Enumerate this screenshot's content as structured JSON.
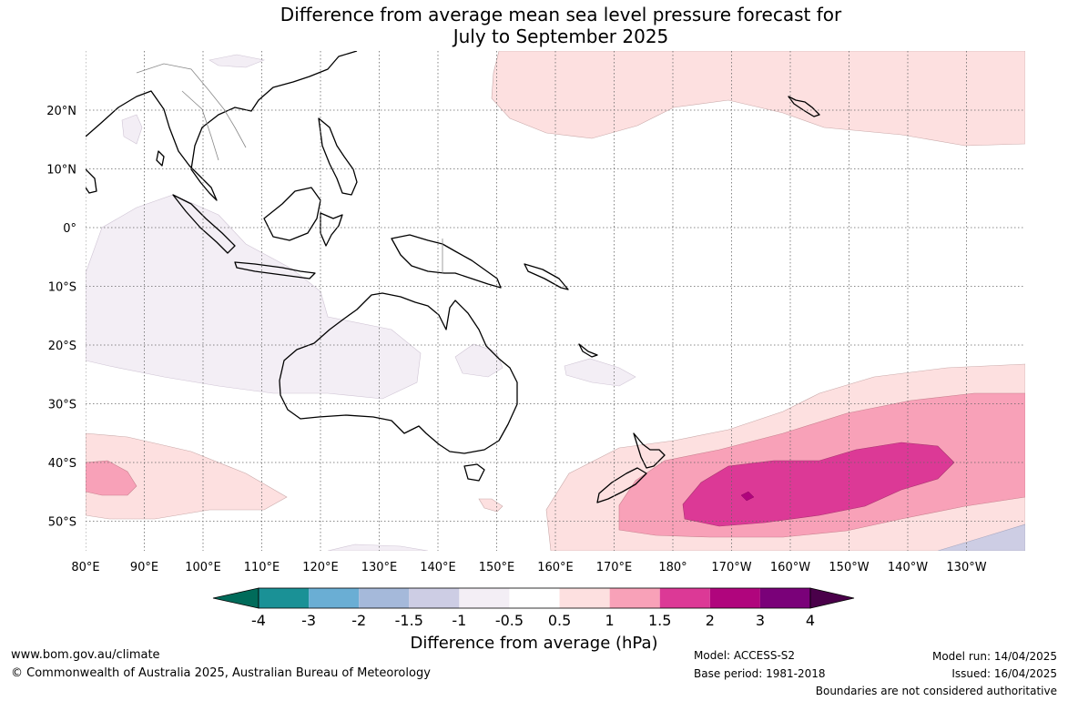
{
  "title_line1": "Difference from average mean sea level pressure forecast for",
  "title_line2": "July to September 2025",
  "map": {
    "lon_labels": [
      "80°E",
      "90°E",
      "100°E",
      "110°E",
      "120°E",
      "130°E",
      "140°E",
      "150°E",
      "160°E",
      "170°E",
      "180°",
      "170°W",
      "160°W",
      "150°W",
      "140°W",
      "130°W"
    ],
    "lat_labels": [
      "20°N",
      "10°N",
      "0°",
      "10°S",
      "20°S",
      "30°S",
      "40°S",
      "50°S"
    ],
    "extent": {
      "lon": [
        80,
        240
      ],
      "lat": [
        -55,
        30
      ]
    }
  },
  "colorbar": {
    "title": "Difference from average (hPa)",
    "labels": [
      "-4",
      "-3",
      "-2",
      "-1.5",
      "-1",
      "-0.5",
      "0.5",
      "1",
      "1.5",
      "2",
      "3",
      "4"
    ],
    "colors": [
      "#006b5a",
      "#1a9196",
      "#6aaed4",
      "#a5b9da",
      "#cdcde4",
      "#f3eef5",
      "#ffffff",
      "#fde0e0",
      "#f8a1b8",
      "#dc3996",
      "#b0057d",
      "#7a0179",
      "#4a004a"
    ]
  },
  "footer": {
    "website": "www.bom.gov.au/climate",
    "copyright": "© Commonwealth of Australia 2025, Australian Bureau of Meteorology",
    "model": "Model: ACCESS-S2",
    "base_period": "Base period: 1981-2018",
    "model_run": "Model run: 14/04/2025",
    "issued": "Issued: 16/04/2025",
    "disclaimer": "Boundaries are not considered authoritative"
  }
}
